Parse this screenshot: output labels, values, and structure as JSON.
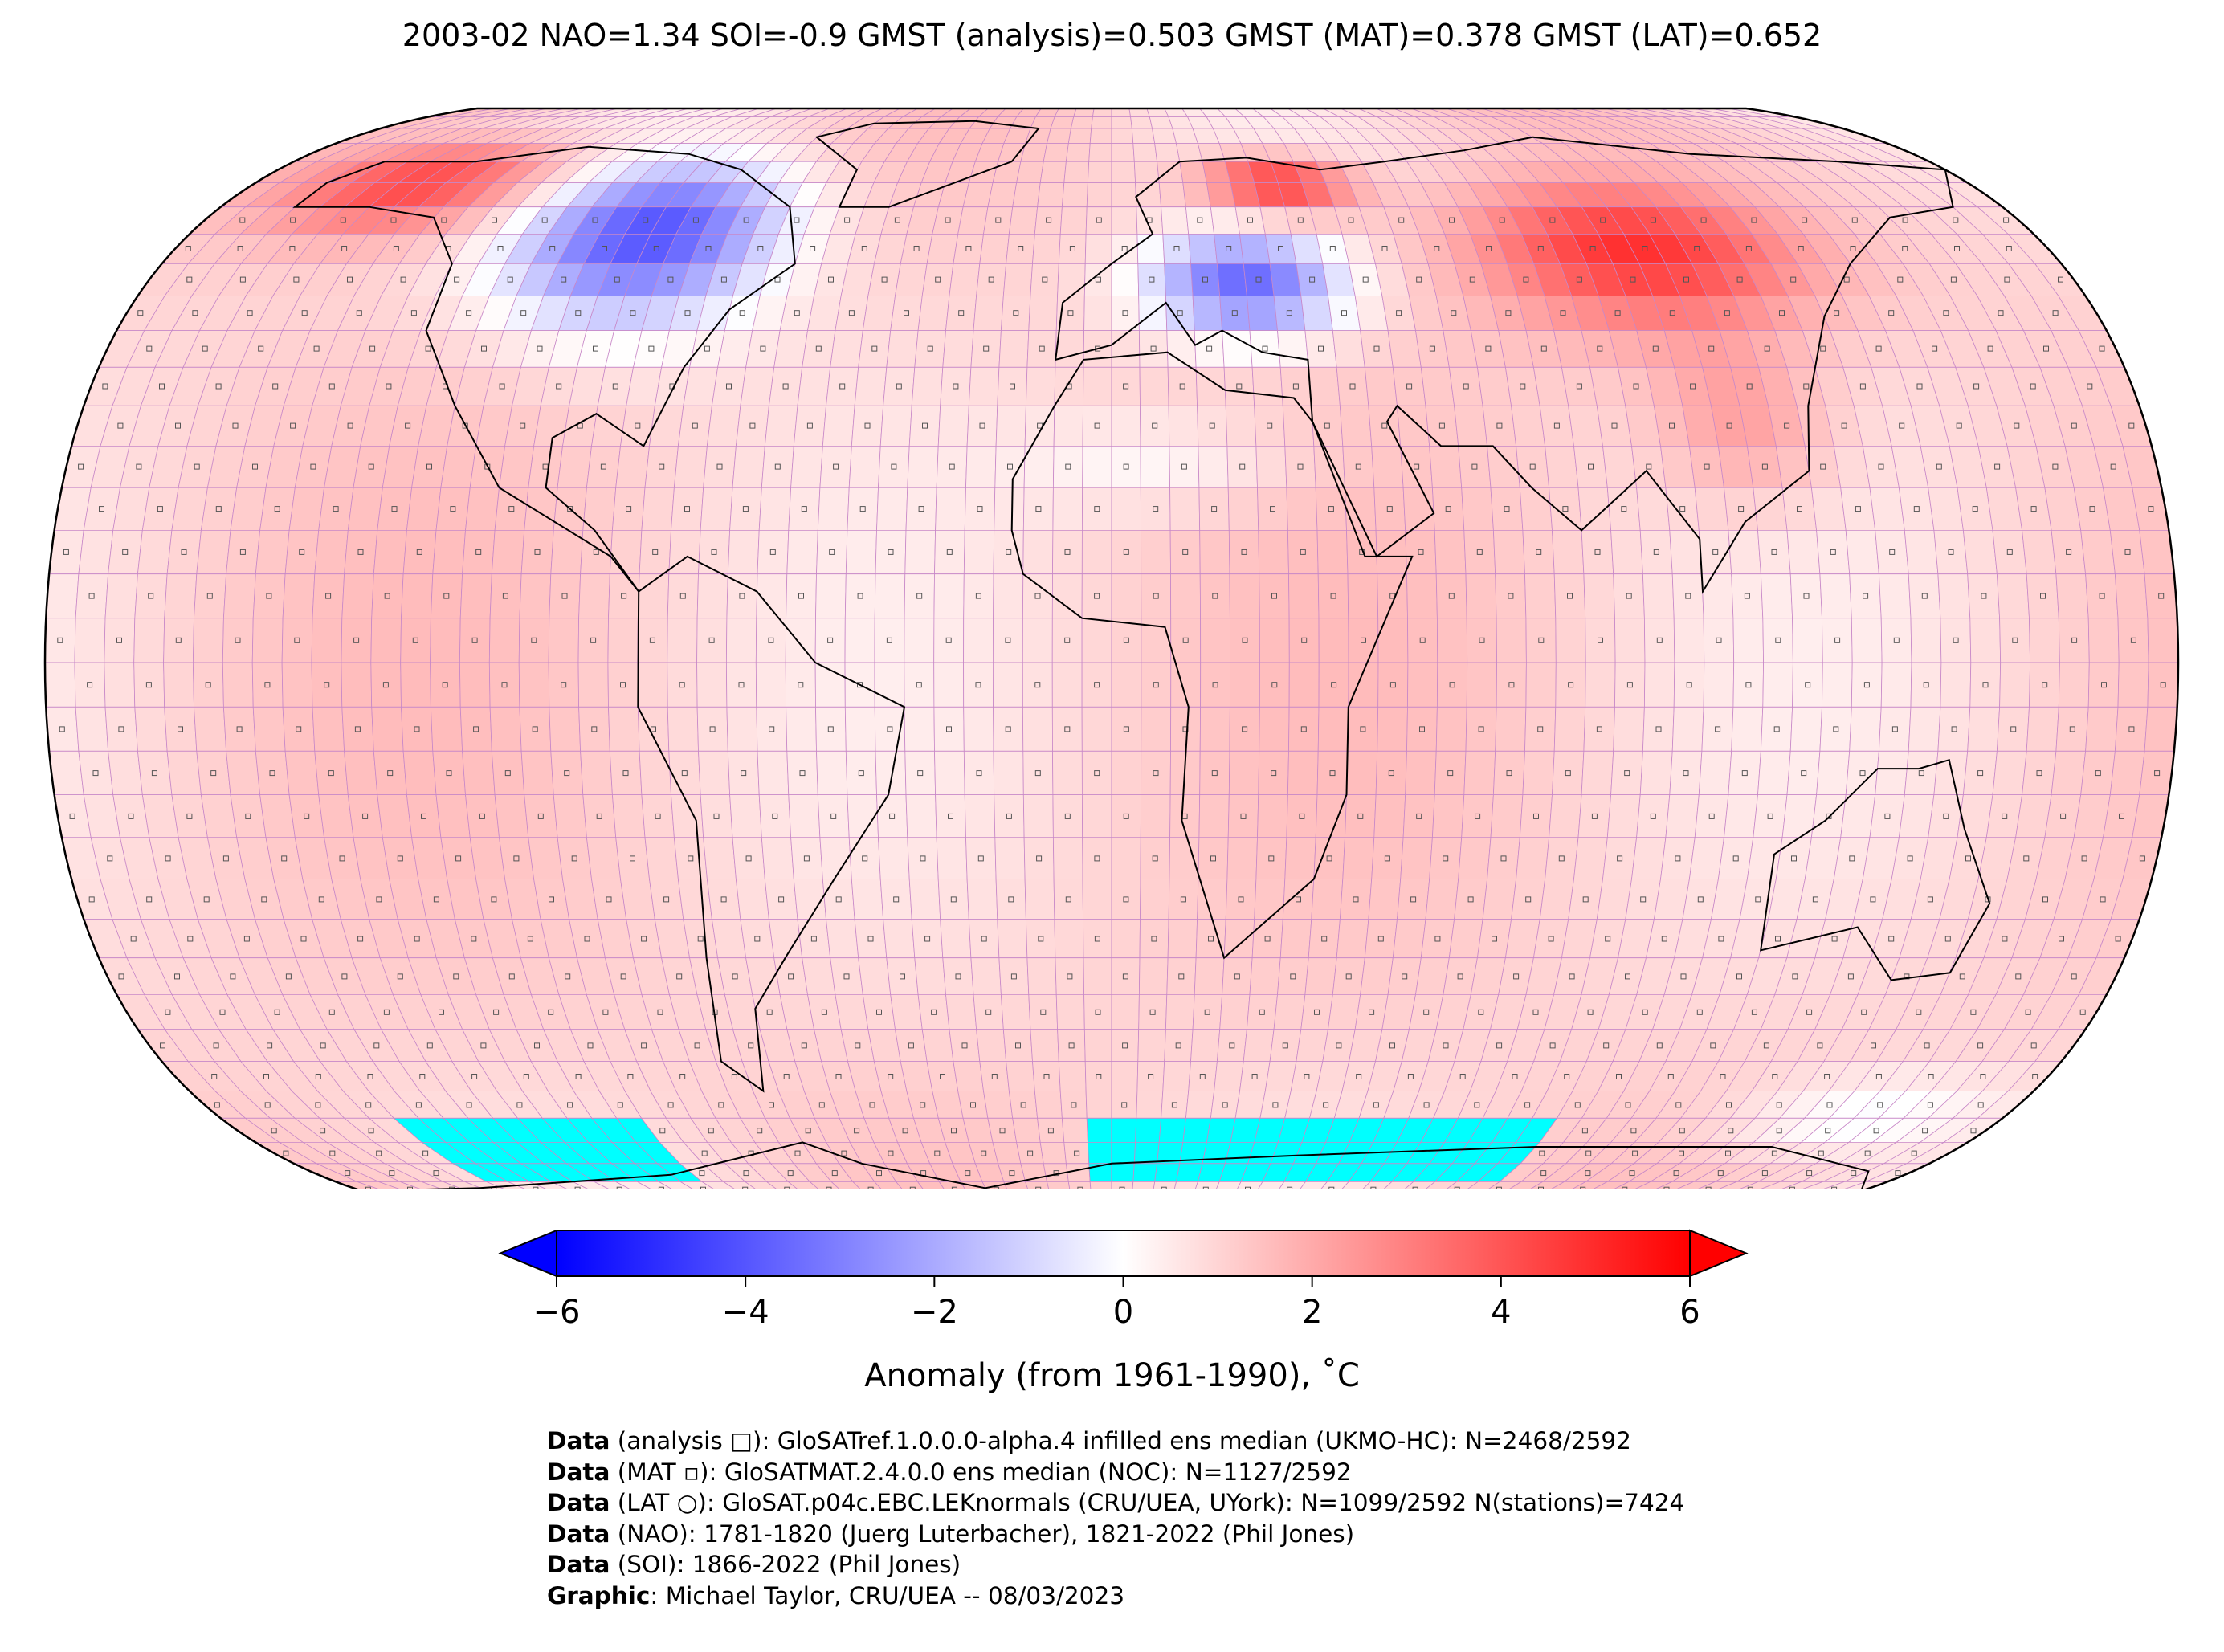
{
  "title": "2003-02 NAO=1.34 SOI=-0.9 GMST (analysis)=0.503 GMST (MAT)=0.378 GMST (LAT)=0.652",
  "colorbar": {
    "min": -6,
    "max": 6,
    "ticks": [
      "−6",
      "−4",
      "−2",
      "0",
      "2",
      "4",
      "6"
    ],
    "label": "Anomaly (from 1961-1990), ˚C",
    "colors": {
      "cold": "#0000ff",
      "neutral": "#ffffff",
      "warm": "#ff0000",
      "missing": "#00ffff"
    }
  },
  "credits": [
    {
      "key": "Data",
      "text": " (analysis □): GloSATref.1.0.0.0-alpha.4 infilled ens median (UKMO-HC): N=2468/2592"
    },
    {
      "key": "Data",
      "text": " (MAT ▫): GloSATMAT.2.4.0.0 ens median (NOC): N=1127/2592"
    },
    {
      "key": "Data",
      "text": " (LAT ○): GloSAT.p04c.EBC.LEKnormals (CRU/UEA, UYork): N=1099/2592 N(stations)=7424"
    },
    {
      "key": "Data",
      "text": " (NAO): 1781-1820 (Juerg Luterbacher), 1821-2022 (Phil Jones)"
    },
    {
      "key": "Data",
      "text": " (SOI): 1866-2022 (Phil Jones)"
    },
    {
      "key": "Graphic",
      "text": ": Michael Taylor, CRU/UEA -- 08/03/2023"
    }
  ]
}
